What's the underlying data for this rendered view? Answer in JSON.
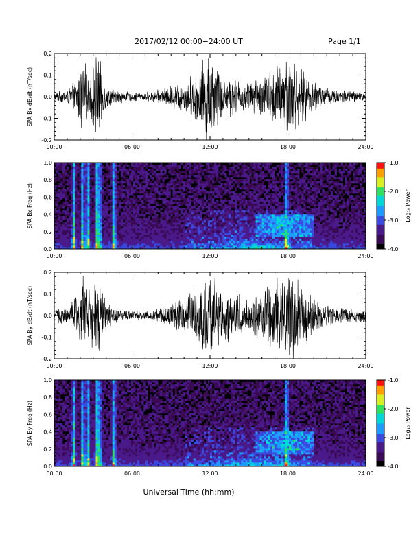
{
  "header": {
    "title": "2017/02/12  00:00−24:00 UT",
    "page": "Page 1/1"
  },
  "footer": {
    "xlabel": "Universal Time (hh:mm)"
  },
  "colors": {
    "trace": "#000000",
    "colormap": [
      "#000000",
      "#3a0a55",
      "#4a1a8a",
      "#3a4adf",
      "#1e9bff",
      "#00d8d8",
      "#2ee05a",
      "#d8f020",
      "#ffa000",
      "#ff1010"
    ]
  },
  "chart_data": [
    {
      "type": "line",
      "panel": "bx-timeseries",
      "ylabel": "SPA Bx dB/dt (nT/sec)",
      "ylim": [
        -0.2,
        0.2
      ],
      "yticks": [
        "-0.2",
        "-0.1",
        "0.0",
        "0.1",
        "0.2"
      ],
      "xlim": [
        0,
        24
      ],
      "xticks": [
        "00:00",
        "06:00",
        "12:00",
        "18:00",
        "24:00"
      ],
      "activity_envelope": {
        "hours": [
          0,
          1,
          1.8,
          2.2,
          2.6,
          3.3,
          4.0,
          5,
          6,
          7,
          8,
          9,
          10,
          11,
          11.5,
          12,
          12.5,
          13,
          14,
          15,
          16,
          17,
          17.5,
          18,
          18.5,
          19,
          20,
          21,
          22,
          23,
          24
        ],
        "amplitude": [
          0.02,
          0.03,
          0.08,
          0.2,
          0.08,
          0.2,
          0.05,
          0.03,
          0.02,
          0.02,
          0.03,
          0.05,
          0.07,
          0.12,
          0.18,
          0.2,
          0.14,
          0.11,
          0.08,
          0.06,
          0.09,
          0.14,
          0.17,
          0.2,
          0.18,
          0.12,
          0.07,
          0.05,
          0.03,
          0.03,
          0.02
        ]
      }
    },
    {
      "type": "heatmap",
      "panel": "bx-spectrogram",
      "ylabel": "SPA Bx Freq (Hz)",
      "ylim": [
        0,
        1.0
      ],
      "yticks": [
        "0.0",
        "0.2",
        "0.4",
        "0.6",
        "0.8",
        "1.0"
      ],
      "xlim": [
        0,
        24
      ],
      "xticks": [
        "00:00",
        "06:00",
        "12:00",
        "18:00",
        "24:00"
      ],
      "colorbar": {
        "label": "Log₁₀ Power",
        "range": [
          -4.0,
          -1.0
        ],
        "ticks": [
          "-1.0",
          "-2.0",
          "-3.0",
          "-4.0"
        ]
      },
      "features": {
        "broadband_bursts_hours": [
          1.5,
          2.2,
          2.6,
          3.3,
          3.5,
          4.6,
          17.9
        ],
        "midfreq_patch": {
          "hours": [
            15.5,
            20.0
          ],
          "freq_hz": [
            0.15,
            0.4
          ],
          "log_power": -2.5
        }
      }
    },
    {
      "type": "line",
      "panel": "by-timeseries",
      "ylabel": "SPA By dB/dt (nT/sec)",
      "ylim": [
        -0.2,
        0.2
      ],
      "yticks": [
        "-0.2",
        "-0.1",
        "0.0",
        "0.1",
        "0.2"
      ],
      "xlim": [
        0,
        24
      ],
      "xticks": [
        "00:00",
        "06:00",
        "12:00",
        "18:00",
        "24:00"
      ],
      "activity_envelope": {
        "hours": [
          0,
          1,
          1.8,
          2.2,
          2.6,
          3.3,
          4.0,
          5,
          6,
          7,
          8,
          9,
          10,
          11,
          11.5,
          12,
          12.5,
          13,
          14,
          15,
          16,
          17,
          17.5,
          18,
          18.5,
          19,
          20,
          21,
          22,
          23,
          24
        ],
        "amplitude": [
          0.03,
          0.04,
          0.1,
          0.2,
          0.1,
          0.2,
          0.06,
          0.03,
          0.02,
          0.02,
          0.03,
          0.05,
          0.08,
          0.13,
          0.17,
          0.2,
          0.15,
          0.12,
          0.1,
          0.08,
          0.11,
          0.16,
          0.19,
          0.2,
          0.19,
          0.13,
          0.08,
          0.05,
          0.04,
          0.03,
          0.03
        ]
      }
    },
    {
      "type": "heatmap",
      "panel": "by-spectrogram",
      "ylabel": "SPA By Freq (Hz)",
      "ylim": [
        0,
        1.0
      ],
      "yticks": [
        "0.0",
        "0.2",
        "0.4",
        "0.6",
        "0.8",
        "1.0"
      ],
      "xlim": [
        0,
        24
      ],
      "xticks": [
        "00:00",
        "06:00",
        "12:00",
        "18:00",
        "24:00"
      ],
      "colorbar": {
        "label": "Log₁₀ Power",
        "range": [
          -4.0,
          -1.0
        ],
        "ticks": [
          "-1.0",
          "-2.0",
          "-3.0",
          "-4.0"
        ]
      },
      "features": {
        "broadband_bursts_hours": [
          1.5,
          2.2,
          2.6,
          3.3,
          3.5,
          4.6,
          17.9
        ],
        "midfreq_patch": {
          "hours": [
            15.5,
            20.0
          ],
          "freq_hz": [
            0.15,
            0.4
          ],
          "log_power": -2.5
        }
      }
    }
  ]
}
